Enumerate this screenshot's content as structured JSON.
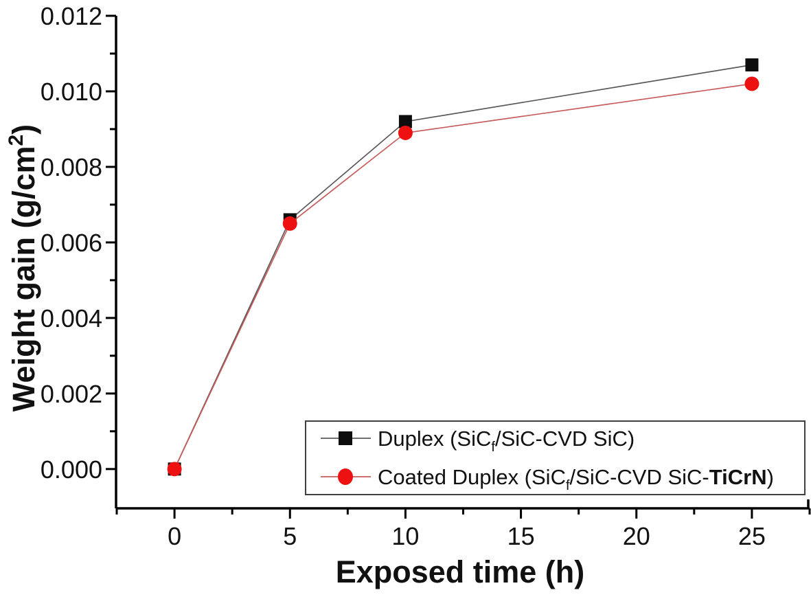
{
  "chart_data": {
    "type": "line",
    "title": "",
    "xlabel": "Exposed time (h)",
    "xlabel_parts": [
      {
        "t": "Exposed time (h)"
      }
    ],
    "ylabel": "Weight gain (g/cm2)",
    "ylabel_parts": [
      {
        "t": "Weight gain (g/cm"
      },
      {
        "t": "2",
        "sup": true
      },
      {
        "t": ")"
      }
    ],
    "x": [
      0,
      5,
      10,
      25
    ],
    "series": [
      {
        "name": "Duplex (SiCf/SiC-CVD SiC)",
        "name_parts": [
          {
            "t": "Duplex (SiC"
          },
          {
            "t": "f",
            "sub": true
          },
          {
            "t": "/SiC-CVD SiC)"
          }
        ],
        "marker": "square",
        "marker_color": "#0d0d0d",
        "line_color": "#5a5a5a",
        "values": [
          0.0,
          0.0066,
          0.0092,
          0.0107
        ]
      },
      {
        "name": "Coated Duplex (SiCf/SiC-CVD SiC-TiCrN)",
        "name_parts": [
          {
            "t": "Coated Duplex (SiC"
          },
          {
            "t": "f",
            "sub": true
          },
          {
            "t": "/SiC-CVD SiC-"
          },
          {
            "t": "TiCrN",
            "bold": true
          },
          {
            "t": ")"
          }
        ],
        "marker": "circle",
        "marker_color": "#ee1111",
        "line_color": "#c75c5c",
        "values": [
          0.0,
          0.0065,
          0.0089,
          0.0102
        ]
      }
    ],
    "xticks": [
      0,
      5,
      10,
      15,
      20,
      25
    ],
    "xtick_labels": [
      "0",
      "5",
      "10",
      "15",
      "20",
      "25"
    ],
    "x_minor_step": 2.5,
    "yticks": [
      0,
      0.002,
      0.004,
      0.006,
      0.008,
      0.01,
      0.012
    ],
    "ytick_labels": [
      "0.000",
      "0.002",
      "0.004",
      "0.006",
      "0.008",
      "0.010",
      "0.012"
    ],
    "y_minor_step": 0.001,
    "xlim": [
      -2.53,
      27.5
    ],
    "ylim": [
      -0.00104,
      0.012
    ],
    "grid": false,
    "axis_color": "#000000",
    "text_color": "#111111",
    "legend": {
      "position": "inside-bottom-right",
      "border_color": "#3f3f3f",
      "background": "#ffffff"
    }
  }
}
